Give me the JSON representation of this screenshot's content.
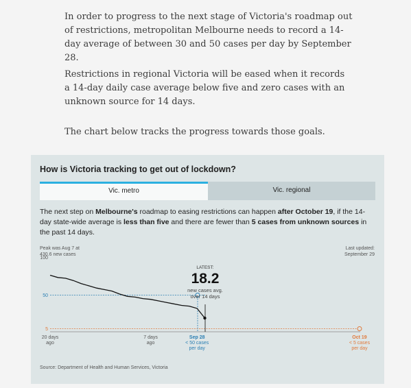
{
  "article": {
    "paragraphs": [
      "In order to progress to the next stage of Victoria's roadmap out of restrictions, metropolitan Melbourne needs to record a 14-day average of between 30 and 50 cases per day by September 28.",
      "Restrictions in regional Victoria will be eased when it records a 14-day daily case average below five and zero cases with an unknown source for 14 days.",
      "The chart below tracks the progress towards those goals."
    ]
  },
  "widget": {
    "title": "How is Victoria tracking to get out of lockdown?",
    "tabs": [
      {
        "label": "Vic. metro",
        "active": true
      },
      {
        "label": "Vic. regional",
        "active": false
      }
    ],
    "description": {
      "t1": "The next step on ",
      "b1": "Melbourne's",
      "t2": " roadmap to easing restrictions can happen ",
      "b2": "after October 19",
      "t3": ", if the 14-day state-wide average is ",
      "b3": "less than five",
      "t4": " and there are fewer than ",
      "b4": "5 cases from unknown sources",
      "t5": " in the past 14 days."
    },
    "source": "Source: Department of Health and Human Services, Victoria"
  },
  "chart_data": {
    "type": "line",
    "y_ticks": [
      "100",
      "50",
      "5"
    ],
    "ylim": [
      0,
      100
    ],
    "peak_note": [
      "Peak was Aug 7 at",
      "430.6 new cases"
    ],
    "last_updated": [
      "Last updated:",
      "September 29"
    ],
    "latest": {
      "label": "LATEST:",
      "value": "18.2",
      "desc": [
        "new cases avg.",
        "over 14 days"
      ]
    },
    "x_labels": [
      {
        "lines": [
          "20 days",
          "ago"
        ],
        "day": -20
      },
      {
        "lines": [
          "7 days",
          "ago"
        ],
        "day": -7
      },
      {
        "lines": [
          "Sep 28",
          "< 50 cases",
          "per day"
        ],
        "day": -1
      },
      {
        "lines": [
          "Oct 19",
          "< 5 cases",
          "per day"
        ],
        "day": 20
      }
    ],
    "series": [
      {
        "x": [
          -20,
          -19,
          -18,
          -17,
          -16,
          -15,
          -14,
          -13,
          -12,
          -11,
          -10,
          -9,
          -8,
          -7,
          -6,
          -5,
          -4,
          -3,
          -2,
          -1,
          0
        ],
        "values": [
          75,
          72,
          71,
          68,
          64,
          61,
          58,
          56,
          54,
          50,
          47,
          46,
          44,
          43,
          41,
          39,
          37,
          35,
          34,
          31,
          18.2
        ]
      }
    ],
    "targets": [
      {
        "value": 50,
        "color": "#2b7fb3"
      },
      {
        "value": 5,
        "color": "#e07a3c"
      }
    ],
    "colors": {
      "line": "#111111",
      "metro_target": "#2b7fb3",
      "regional_target": "#e07a3c"
    }
  }
}
